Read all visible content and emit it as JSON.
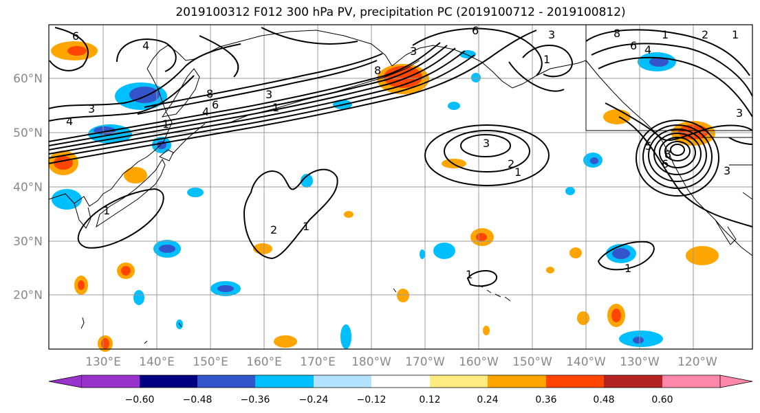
{
  "title": "2019100312 F012 300 hPa PV, precipitation PC (2019100712 - 2019100812)",
  "map": {
    "lon_labels": [
      "130°E",
      "140°E",
      "150°E",
      "160°E",
      "170°E",
      "180°W",
      "170°W",
      "160°W",
      "150°W",
      "140°W",
      "130°W",
      "120°W"
    ],
    "lat_labels": [
      "60°N",
      "50°N",
      "40°N",
      "30°N",
      "20°N"
    ],
    "contour_labels": [
      "6",
      "4",
      "3",
      "4",
      "8",
      "6",
      "4",
      "1",
      "3",
      "1",
      "8",
      "3",
      "6",
      "3",
      "1",
      "3",
      "2",
      "1",
      "2",
      "1",
      "1",
      "1",
      "2",
      "6",
      "8",
      "4",
      "3",
      "1",
      "1",
      "1",
      "5",
      "6",
      "8",
      "3"
    ]
  },
  "colorbar": {
    "ticks": [
      "−0.60",
      "−0.48",
      "−0.36",
      "−0.24",
      "−0.12",
      "0.12",
      "0.24",
      "0.36",
      "0.48",
      "0.60"
    ],
    "colors": [
      "#9933cc",
      "#000080",
      "#3355cc",
      "#00bfff",
      "#b3e3ff",
      "#ffffff",
      "#ffeb80",
      "#ffa500",
      "#ff4500",
      "#b22222",
      "#ff88aa"
    ]
  },
  "colors": {
    "pv_contour": "#000000",
    "coast": "#000000",
    "grid": "#999999"
  }
}
